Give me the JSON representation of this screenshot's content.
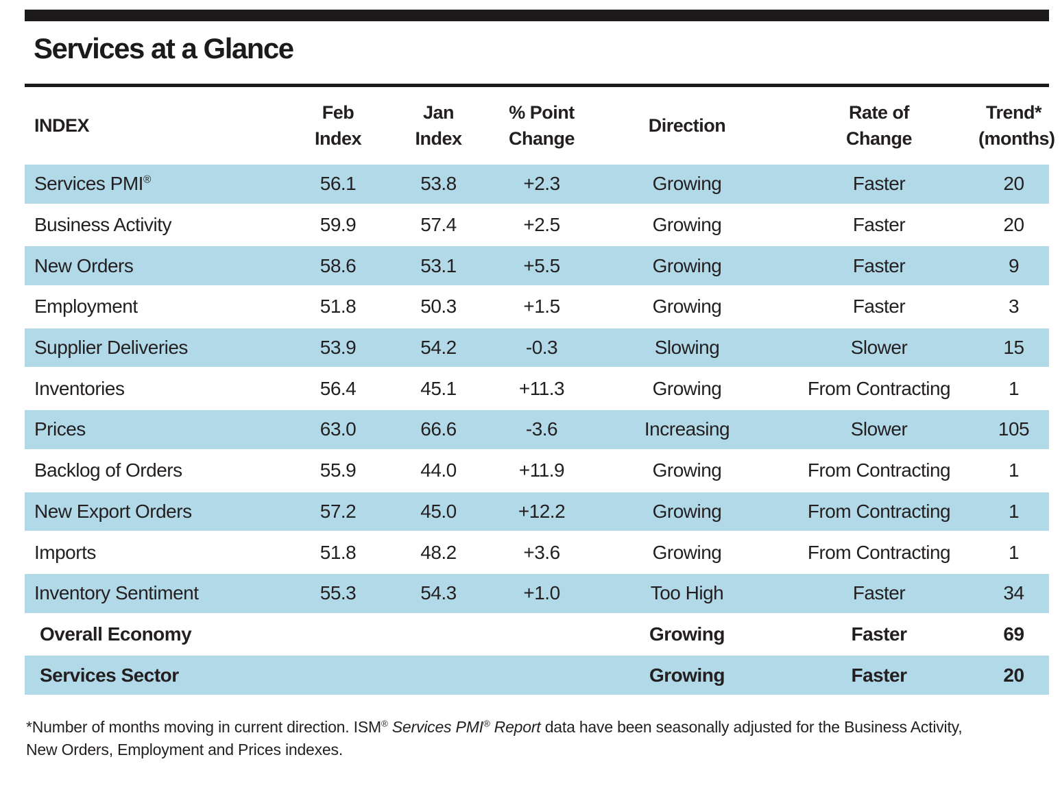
{
  "title": "Services at a Glance",
  "colors": {
    "row_highlight": "#b2d9e8",
    "rule_black": "#1d1a1b",
    "text": "#231f20",
    "background": "#ffffff"
  },
  "table": {
    "columns": [
      {
        "key": "index",
        "label": "INDEX"
      },
      {
        "key": "feb",
        "label": "Feb\nIndex"
      },
      {
        "key": "jan",
        "label": "Jan\nIndex"
      },
      {
        "key": "change",
        "label": "% Point\nChange"
      },
      {
        "key": "direction",
        "label": "Direction"
      },
      {
        "key": "rate",
        "label": "Rate of\nChange"
      },
      {
        "key": "trend",
        "label": "Trend*\n(months)"
      }
    ],
    "rows": [
      {
        "index": "Services PMI®",
        "feb": "56.1",
        "jan": "53.8",
        "change": "+2.3",
        "direction": "Growing",
        "rate": "Faster",
        "trend": "20",
        "highlight": true,
        "bold": false
      },
      {
        "index": "Business Activity",
        "feb": "59.9",
        "jan": "57.4",
        "change": "+2.5",
        "direction": "Growing",
        "rate": "Faster",
        "trend": "20",
        "highlight": false,
        "bold": false
      },
      {
        "index": "New Orders",
        "feb": "58.6",
        "jan": "53.1",
        "change": "+5.5",
        "direction": "Growing",
        "rate": "Faster",
        "trend": "9",
        "highlight": true,
        "bold": false
      },
      {
        "index": "Employment",
        "feb": "51.8",
        "jan": "50.3",
        "change": "+1.5",
        "direction": "Growing",
        "rate": "Faster",
        "trend": "3",
        "highlight": false,
        "bold": false
      },
      {
        "index": "Supplier Deliveries",
        "feb": "53.9",
        "jan": "54.2",
        "change": "-0.3",
        "direction": "Slowing",
        "rate": "Slower",
        "trend": "15",
        "highlight": true,
        "bold": false
      },
      {
        "index": "Inventories",
        "feb": "56.4",
        "jan": "45.1",
        "change": "+11.3",
        "direction": "Growing",
        "rate": "From Contracting",
        "trend": "1",
        "highlight": false,
        "bold": false
      },
      {
        "index": "Prices",
        "feb": "63.0",
        "jan": "66.6",
        "change": "-3.6",
        "direction": "Increasing",
        "rate": "Slower",
        "trend": "105",
        "highlight": true,
        "bold": false
      },
      {
        "index": "Backlog of Orders",
        "feb": "55.9",
        "jan": "44.0",
        "change": "+11.9",
        "direction": "Growing",
        "rate": "From Contracting",
        "trend": "1",
        "highlight": false,
        "bold": false
      },
      {
        "index": "New Export Orders",
        "feb": "57.2",
        "jan": "45.0",
        "change": "+12.2",
        "direction": "Growing",
        "rate": "From Contracting",
        "trend": "1",
        "highlight": true,
        "bold": false
      },
      {
        "index": "Imports",
        "feb": "51.8",
        "jan": "48.2",
        "change": "+3.6",
        "direction": "Growing",
        "rate": "From Contracting",
        "trend": "1",
        "highlight": false,
        "bold": false
      },
      {
        "index": "Inventory Sentiment",
        "feb": "55.3",
        "jan": "54.3",
        "change": "+1.0",
        "direction": "Too High",
        "rate": "Faster",
        "trend": "34",
        "highlight": true,
        "bold": false
      },
      {
        "index": "Overall Economy",
        "feb": "",
        "jan": "",
        "change": "",
        "direction": "Growing",
        "rate": "Faster",
        "trend": "69",
        "highlight": false,
        "bold": true
      },
      {
        "index": "Services Sector",
        "feb": "",
        "jan": "",
        "change": "",
        "direction": "Growing",
        "rate": "Faster",
        "trend": "20",
        "highlight": true,
        "bold": true
      }
    ]
  },
  "footnote": {
    "lines": [
      [
        {
          "t": "*Number of months moving in current direction. ISM",
          "s": ""
        },
        {
          "t": "®",
          "s": "sup"
        },
        {
          "t": " ",
          "s": ""
        },
        {
          "t": "Services PMI",
          "s": "italic"
        },
        {
          "t": "®",
          "s": "sup italic"
        },
        {
          "t": " Report",
          "s": "italic"
        },
        {
          "t": " data have been seasonally adjusted for the Business Activity,",
          "s": ""
        }
      ],
      [
        {
          "t": "New Orders, Employment and Prices indexes.",
          "s": ""
        }
      ]
    ]
  }
}
